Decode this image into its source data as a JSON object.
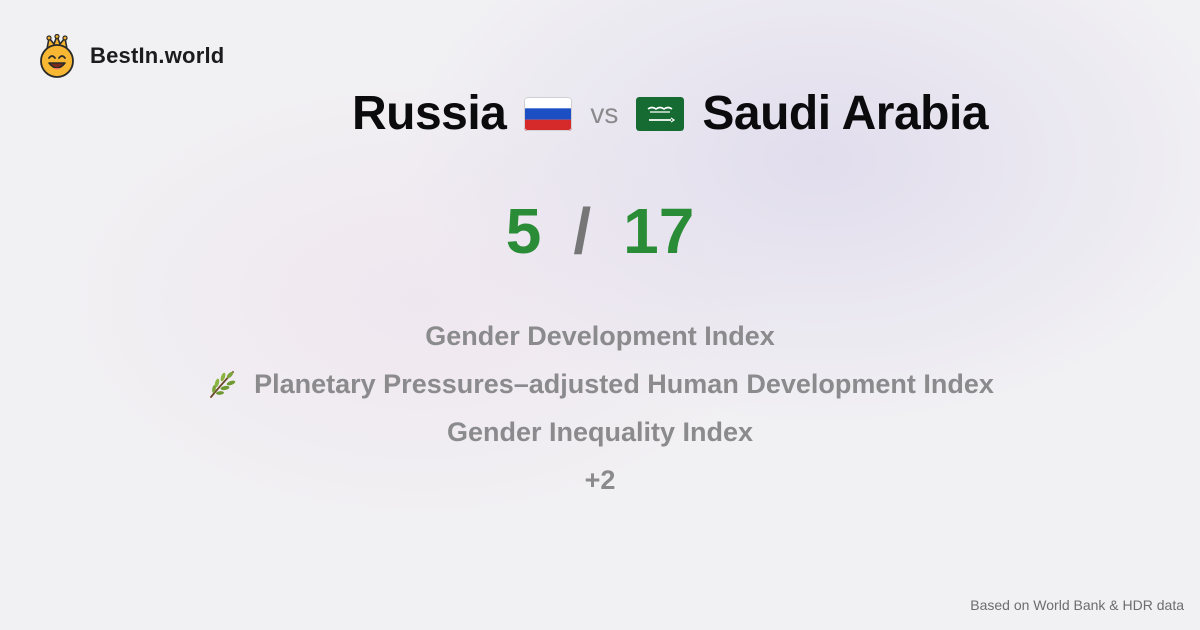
{
  "brand": {
    "name": "BestIn.world",
    "logo_icon": "crown-smiley-icon"
  },
  "comparison": {
    "left_country": "Russia",
    "left_flag_icon": "russia-flag-icon",
    "vs_label": "vs",
    "right_country": "Saudi Arabia",
    "right_flag_icon": "saudi-arabia-flag-icon"
  },
  "score": {
    "left": "5",
    "separator": "/",
    "right": "17",
    "color": "#2a8c36"
  },
  "metrics": [
    {
      "label": "Gender Development Index"
    },
    {
      "label": "Planetary Pressures–adjusted Human Development Index",
      "icon": "herb-leaf-icon"
    },
    {
      "label": "Gender Inequality Index"
    },
    {
      "label": "+2"
    }
  ],
  "footer": {
    "source": "Based on World Bank & HDR data"
  }
}
